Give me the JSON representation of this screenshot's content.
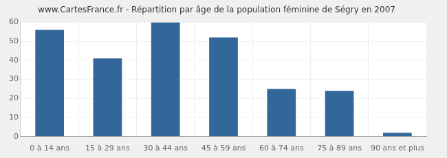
{
  "chart_data": {
    "type": "bar",
    "title": "www.CartesFrance.fr - Répartition par âge de la population féminine de Ségry en 2007",
    "categories": [
      "0 à 14 ans",
      "15 à 29 ans",
      "30 à 44 ans",
      "45 à 59 ans",
      "60 à 74 ans",
      "75 à 89 ans",
      "90 ans et plus"
    ],
    "values": [
      56,
      41,
      60,
      52,
      25,
      24,
      2
    ],
    "color": "#336699",
    "ylim": [
      0,
      60
    ],
    "yticks": [
      0,
      10,
      20,
      30,
      40,
      50,
      60
    ],
    "grid": true
  }
}
